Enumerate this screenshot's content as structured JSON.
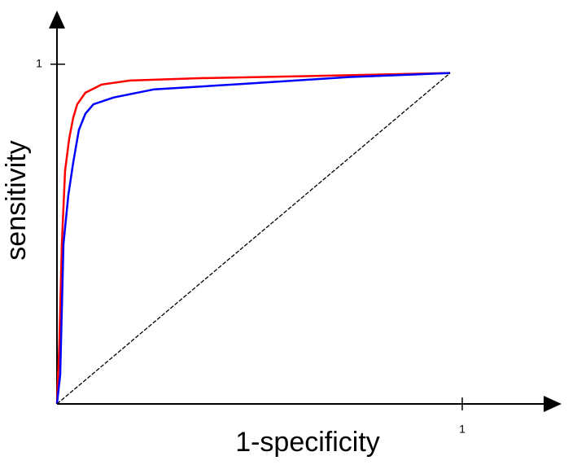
{
  "chart_data": {
    "type": "line",
    "xlabel": "1-specificity",
    "ylabel": "sensitivity",
    "xlim": [
      0,
      1.245
    ],
    "ylim": [
      0,
      1.153
    ],
    "xticks": [
      1
    ],
    "yticks": [
      1
    ],
    "series": [
      {
        "color": "#ff0000",
        "x": [
          0,
          0.006,
          0.012,
          0.02,
          0.03,
          0.04,
          0.05,
          0.07,
          0.11,
          0.18,
          0.36,
          0.66,
          0.97
        ],
        "values": [
          0,
          0.182,
          0.47,
          0.686,
          0.78,
          0.842,
          0.882,
          0.916,
          0.94,
          0.952,
          0.959,
          0.966,
          0.974
        ]
      },
      {
        "color": "#0000ff",
        "x": [
          0,
          0.008,
          0.016,
          0.028,
          0.04,
          0.054,
          0.07,
          0.09,
          0.14,
          0.24,
          0.46,
          0.72,
          0.97
        ],
        "values": [
          0,
          0.086,
          0.47,
          0.614,
          0.71,
          0.806,
          0.854,
          0.882,
          0.902,
          0.926,
          0.942,
          0.962,
          0.974
        ]
      },
      {
        "color": "#000000",
        "dashed": true,
        "x": [
          0,
          0.97
        ],
        "values": [
          0,
          0.974
        ]
      }
    ]
  }
}
